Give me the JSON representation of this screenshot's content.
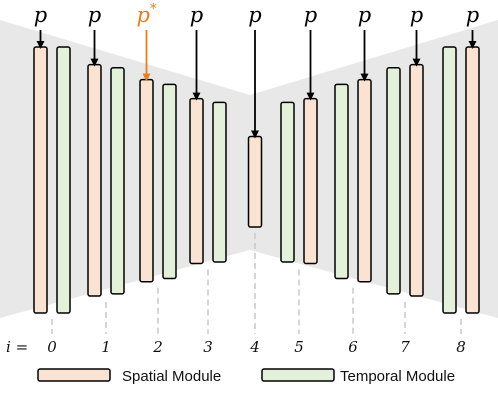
{
  "colors": {
    "spatial_fill": "#fbe3d4",
    "temporal_fill": "#e3f0da",
    "stroke": "#000000",
    "background_shape": "#e8e8e8",
    "highlight": "#e67e22",
    "dashed": "#c8c8c8"
  },
  "prompt_symbol": "p",
  "prompt_highlight_symbol": "p",
  "prompt_highlight_superscript": "*",
  "highlight_column": 2,
  "index_label": "i =",
  "indices": [
    "0",
    "1",
    "2",
    "3",
    "4",
    "5",
    "6",
    "7",
    "8"
  ],
  "legend": {
    "spatial": "Spatial Module",
    "temporal": "Temporal Module"
  },
  "columns": [
    {
      "i": "0",
      "order": [
        "spatial",
        "temporal"
      ],
      "spatial_len": 1.0,
      "temporal_len": 1.0
    },
    {
      "i": "1",
      "order": [
        "spatial",
        "temporal"
      ],
      "spatial_len": 0.87,
      "temporal_len": 0.85
    },
    {
      "i": "2",
      "order": [
        "spatial",
        "temporal"
      ],
      "spatial_len": 0.76,
      "temporal_len": 0.73
    },
    {
      "i": "3",
      "order": [
        "spatial",
        "temporal"
      ],
      "spatial_len": 0.62,
      "temporal_len": 0.6
    },
    {
      "i": "4",
      "order": [
        "spatial"
      ],
      "spatial_len": 0.34
    },
    {
      "i": "5",
      "order": [
        "temporal",
        "spatial"
      ],
      "spatial_len": 0.62,
      "temporal_len": 0.6
    },
    {
      "i": "6",
      "order": [
        "temporal",
        "spatial"
      ],
      "spatial_len": 0.76,
      "temporal_len": 0.73
    },
    {
      "i": "7",
      "order": [
        "temporal",
        "spatial"
      ],
      "spatial_len": 0.87,
      "temporal_len": 0.85
    },
    {
      "i": "8",
      "order": [
        "temporal",
        "spatial"
      ],
      "spatial_len": 1.0,
      "temporal_len": 1.0
    }
  ]
}
